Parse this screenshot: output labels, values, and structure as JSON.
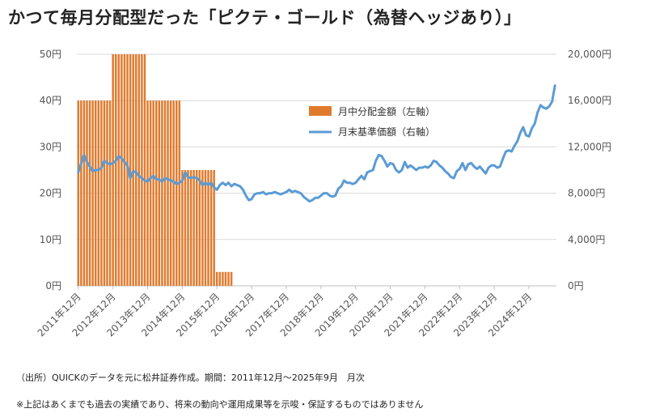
{
  "title": "かつて毎月分配型だった「ピクテ・ゴールド（為替ヘッジあり）」",
  "source": "（出所）QUICKのデータを元に松井証券作成。期間：2011年12月〜2025年9月　月次",
  "note": "※上記はあくまでも過去の実績であり、将来の動向や運用成果等を示唆・保証するものではありません",
  "colors": {
    "bar": "#e07b2e",
    "line": "#5b9bd5",
    "grid": "#d9d9d9"
  },
  "chart_data": {
    "type": "bar+line",
    "legend_position": "top-right-inner",
    "grid": true,
    "x_range": [
      "2011-12",
      "2025-09"
    ],
    "x_tick_labels": [
      "2011年12月",
      "2012年12月",
      "2013年12月",
      "2014年12月",
      "2015年12月",
      "2016年12月",
      "2017年12月",
      "2018年12月",
      "2019年12月",
      "2020年12月",
      "2021年12月",
      "2022年12月",
      "2023年12月",
      "2024年12月"
    ],
    "y_left": {
      "ticks": [
        "0円",
        "10円",
        "20円",
        "30円",
        "40円",
        "50円"
      ],
      "ylim": [
        0,
        50
      ]
    },
    "y_right": {
      "ticks": [
        "0円",
        "4,000円",
        "8,000円",
        "12,000円",
        "16,000円",
        "20,000円"
      ],
      "ylim": [
        0,
        20000
      ]
    },
    "series": [
      {
        "name": "月中分配金額（左軸）",
        "type": "bar",
        "axis": "left",
        "segments": [
          {
            "from": "2011-12",
            "to": "2012-11",
            "value": 40
          },
          {
            "from": "2012-12",
            "to": "2013-11",
            "value": 50
          },
          {
            "from": "2013-12",
            "to": "2014-11",
            "value": 40
          },
          {
            "from": "2014-12",
            "to": "2015-11",
            "value": 25
          },
          {
            "from": "2015-12",
            "to": "2016-05",
            "value": 3
          }
        ]
      },
      {
        "name": "月末基準価額（右軸）",
        "type": "line",
        "axis": "right",
        "points": [
          [
            "2011-12",
            9800
          ],
          [
            "2012-01",
            10600
          ],
          [
            "2012-02",
            11300
          ],
          [
            "2012-03",
            10700
          ],
          [
            "2012-04",
            10300
          ],
          [
            "2012-05",
            9900
          ],
          [
            "2012-06",
            10000
          ],
          [
            "2012-07",
            10000
          ],
          [
            "2012-08",
            10200
          ],
          [
            "2012-09",
            10800
          ],
          [
            "2012-10",
            10600
          ],
          [
            "2012-11",
            10500
          ],
          [
            "2012-12",
            10600
          ],
          [
            "2013-01",
            10800
          ],
          [
            "2013-02",
            11200
          ],
          [
            "2013-03",
            11000
          ],
          [
            "2013-04",
            10700
          ],
          [
            "2013-05",
            10400
          ],
          [
            "2013-06",
            9300
          ],
          [
            "2013-07",
            9900
          ],
          [
            "2013-08",
            9800
          ],
          [
            "2013-09",
            9500
          ],
          [
            "2013-10",
            9300
          ],
          [
            "2013-11",
            9100
          ],
          [
            "2013-12",
            9000
          ],
          [
            "2014-01",
            9300
          ],
          [
            "2014-02",
            9500
          ],
          [
            "2014-03",
            9200
          ],
          [
            "2014-04",
            9200
          ],
          [
            "2014-05",
            9000
          ],
          [
            "2014-06",
            9300
          ],
          [
            "2014-07",
            9200
          ],
          [
            "2014-08",
            9100
          ],
          [
            "2014-09",
            9000
          ],
          [
            "2014-10",
            8800
          ],
          [
            "2014-11",
            8900
          ],
          [
            "2014-12",
            9100
          ],
          [
            "2015-01",
            9800
          ],
          [
            "2015-02",
            9400
          ],
          [
            "2015-03",
            9300
          ],
          [
            "2015-04",
            9400
          ],
          [
            "2015-05",
            9300
          ],
          [
            "2015-06",
            9100
          ],
          [
            "2015-07",
            8700
          ],
          [
            "2015-08",
            8900
          ],
          [
            "2015-09",
            8700
          ],
          [
            "2015-10",
            8900
          ],
          [
            "2015-11",
            8500
          ],
          [
            "2015-12",
            8300
          ],
          [
            "2016-01",
            8700
          ],
          [
            "2016-02",
            8900
          ],
          [
            "2016-03",
            8700
          ],
          [
            "2016-04",
            8900
          ],
          [
            "2016-05",
            8600
          ],
          [
            "2016-06",
            8800
          ],
          [
            "2016-07",
            8700
          ],
          [
            "2016-08",
            8600
          ],
          [
            "2016-09",
            8300
          ],
          [
            "2016-10",
            7800
          ],
          [
            "2016-11",
            7400
          ],
          [
            "2016-12",
            7500
          ],
          [
            "2017-01",
            7900
          ],
          [
            "2017-02",
            8000
          ],
          [
            "2017-03",
            8000
          ],
          [
            "2017-04",
            8100
          ],
          [
            "2017-05",
            7900
          ],
          [
            "2017-06",
            8000
          ],
          [
            "2017-07",
            8000
          ],
          [
            "2017-08",
            8100
          ],
          [
            "2017-09",
            8000
          ],
          [
            "2017-10",
            7900
          ],
          [
            "2017-11",
            8000
          ],
          [
            "2017-12",
            8100
          ],
          [
            "2018-01",
            8300
          ],
          [
            "2018-02",
            8100
          ],
          [
            "2018-03",
            8200
          ],
          [
            "2018-04",
            8100
          ],
          [
            "2018-05",
            8000
          ],
          [
            "2018-06",
            7700
          ],
          [
            "2018-07",
            7500
          ],
          [
            "2018-08",
            7300
          ],
          [
            "2018-09",
            7400
          ],
          [
            "2018-10",
            7600
          ],
          [
            "2018-11",
            7600
          ],
          [
            "2018-12",
            7800
          ],
          [
            "2019-01",
            8000
          ],
          [
            "2019-02",
            8000
          ],
          [
            "2019-03",
            7800
          ],
          [
            "2019-04",
            7700
          ],
          [
            "2019-05",
            7800
          ],
          [
            "2019-06",
            8400
          ],
          [
            "2019-07",
            8600
          ],
          [
            "2019-08",
            9100
          ],
          [
            "2019-09",
            8900
          ],
          [
            "2019-10",
            8900
          ],
          [
            "2019-11",
            8800
          ],
          [
            "2019-12",
            8900
          ],
          [
            "2020-01",
            9200
          ],
          [
            "2020-02",
            9500
          ],
          [
            "2020-03",
            9200
          ],
          [
            "2020-04",
            9800
          ],
          [
            "2020-05",
            9900
          ],
          [
            "2020-06",
            10000
          ],
          [
            "2020-07",
            10800
          ],
          [
            "2020-08",
            11300
          ],
          [
            "2020-09",
            11200
          ],
          [
            "2020-10",
            10800
          ],
          [
            "2020-11",
            10300
          ],
          [
            "2020-12",
            10600
          ],
          [
            "2021-01",
            10500
          ],
          [
            "2021-02",
            10000
          ],
          [
            "2021-03",
            9800
          ],
          [
            "2021-04",
            10000
          ],
          [
            "2021-05",
            10700
          ],
          [
            "2021-06",
            10200
          ],
          [
            "2021-07",
            10400
          ],
          [
            "2021-08",
            10200
          ],
          [
            "2021-09",
            10000
          ],
          [
            "2021-10",
            10200
          ],
          [
            "2021-11",
            10200
          ],
          [
            "2021-12",
            10300
          ],
          [
            "2022-01",
            10200
          ],
          [
            "2022-02",
            10400
          ],
          [
            "2022-03",
            10800
          ],
          [
            "2022-04",
            10700
          ],
          [
            "2022-05",
            10400
          ],
          [
            "2022-06",
            10200
          ],
          [
            "2022-07",
            9900
          ],
          [
            "2022-08",
            9700
          ],
          [
            "2022-09",
            9400
          ],
          [
            "2022-10",
            9300
          ],
          [
            "2022-11",
            9900
          ],
          [
            "2022-12",
            10100
          ],
          [
            "2023-01",
            10600
          ],
          [
            "2023-02",
            10000
          ],
          [
            "2023-03",
            10500
          ],
          [
            "2023-04",
            10600
          ],
          [
            "2023-05",
            10300
          ],
          [
            "2023-06",
            10100
          ],
          [
            "2023-07",
            10300
          ],
          [
            "2023-08",
            10000
          ],
          [
            "2023-09",
            9700
          ],
          [
            "2023-10",
            10200
          ],
          [
            "2023-11",
            10400
          ],
          [
            "2023-12",
            10400
          ],
          [
            "2024-01",
            10200
          ],
          [
            "2024-02",
            10300
          ],
          [
            "2024-03",
            11000
          ],
          [
            "2024-04",
            11600
          ],
          [
            "2024-05",
            11700
          ],
          [
            "2024-06",
            11600
          ],
          [
            "2024-07",
            12100
          ],
          [
            "2024-08",
            12500
          ],
          [
            "2024-09",
            13200
          ],
          [
            "2024-10",
            13700
          ],
          [
            "2024-11",
            13000
          ],
          [
            "2024-12",
            12900
          ],
          [
            "2025-01",
            13600
          ],
          [
            "2025-02",
            14000
          ],
          [
            "2025-03",
            15000
          ],
          [
            "2025-04",
            15600
          ],
          [
            "2025-05",
            15400
          ],
          [
            "2025-06",
            15300
          ],
          [
            "2025-07",
            15500
          ],
          [
            "2025-08",
            15900
          ],
          [
            "2025-09",
            17300
          ]
        ]
      }
    ]
  }
}
